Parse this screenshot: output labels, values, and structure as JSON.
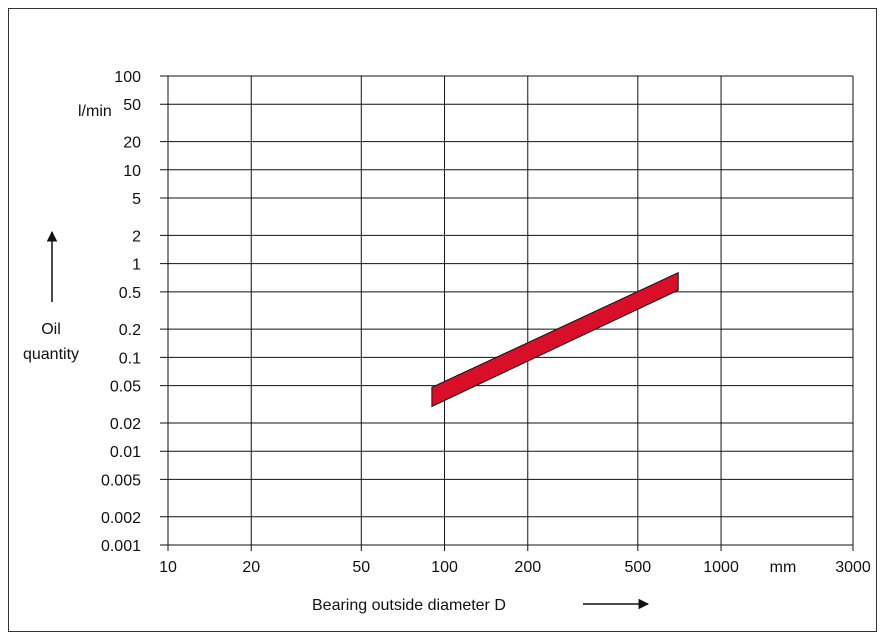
{
  "chart_data": {
    "type": "area",
    "xscale": "log",
    "yscale": "log",
    "xlim": [
      10,
      3000
    ],
    "ylim": [
      0.001,
      100
    ],
    "xticks": [
      {
        "value": 10,
        "label": "10"
      },
      {
        "value": 20,
        "label": "20"
      },
      {
        "value": 50,
        "label": "50"
      },
      {
        "value": 100,
        "label": "100"
      },
      {
        "value": 200,
        "label": "200"
      },
      {
        "value": 500,
        "label": "500"
      },
      {
        "value": 1000,
        "label": "1000"
      },
      {
        "value": 3000,
        "label": "3000"
      }
    ],
    "yticks": [
      {
        "value": 0.001,
        "label": "0.001"
      },
      {
        "value": 0.002,
        "label": "0.002"
      },
      {
        "value": 0.005,
        "label": "0.005"
      },
      {
        "value": 0.01,
        "label": "0.01"
      },
      {
        "value": 0.02,
        "label": "0.02"
      },
      {
        "value": 0.05,
        "label": "0.05"
      },
      {
        "value": 0.1,
        "label": "0.1"
      },
      {
        "value": 0.2,
        "label": "0.2"
      },
      {
        "value": 0.5,
        "label": "0.5"
      },
      {
        "value": 1,
        "label": "1"
      },
      {
        "value": 2,
        "label": "2"
      },
      {
        "value": 5,
        "label": "5"
      },
      {
        "value": 10,
        "label": "10"
      },
      {
        "value": 20,
        "label": "20"
      },
      {
        "value": 50,
        "label": "50"
      },
      {
        "value": 100,
        "label": "100"
      }
    ],
    "x_unit": "mm",
    "y_unit": "l/min",
    "xlabel": "Bearing outside diameter D",
    "ylabel_line1": "Oil",
    "ylabel_line2": "quantity",
    "grid": true,
    "band": {
      "color": "#d90f2a",
      "upper": [
        {
          "x": 90,
          "y": 0.048
        },
        {
          "x": 700,
          "y": 0.8
        }
      ],
      "lower": [
        {
          "x": 90,
          "y": 0.03
        },
        {
          "x": 700,
          "y": 0.52
        }
      ]
    }
  }
}
